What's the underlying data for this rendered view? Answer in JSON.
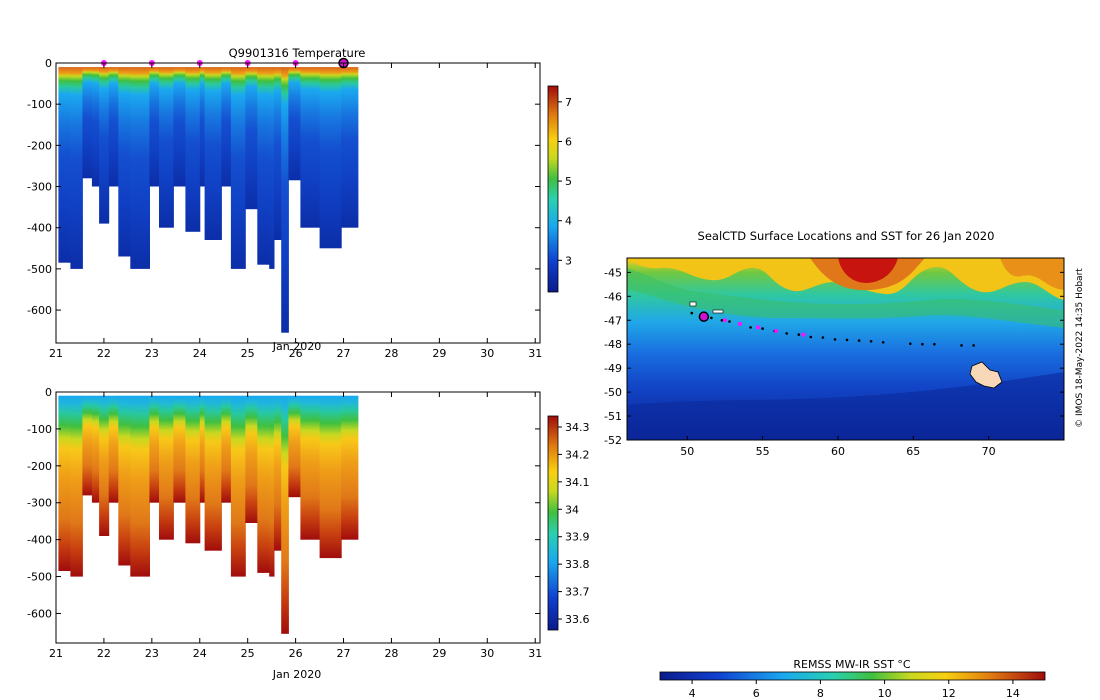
{
  "chart_data": [
    {
      "type": "heatmap",
      "title": "Q9901316  Temperature",
      "xlabel": "Jan 2020",
      "ylabel": "",
      "x_ticks": [
        "21",
        "22",
        "23",
        "24",
        "25",
        "26",
        "27",
        "28",
        "29",
        "30",
        "31"
      ],
      "xlim": [
        21,
        31.1
      ],
      "y_ticks": [
        "0",
        "-100",
        "-200",
        "-300",
        "-400",
        "-500",
        "-600"
      ],
      "ylim": [
        -680,
        0
      ],
      "surface_markers_day": [
        22,
        23,
        24,
        25,
        26
      ],
      "current_marker_day": 27,
      "colorbar": {
        "ticks": [
          "7",
          "6",
          "5",
          "4",
          "3"
        ],
        "values": [
          7,
          6,
          5,
          4,
          3
        ],
        "range": [
          2.2,
          7.4
        ]
      },
      "profiles": [
        {
          "day": 21.05,
          "max_depth": 485
        },
        {
          "day": 21.3,
          "max_depth": 500
        },
        {
          "day": 21.55,
          "max_depth": 280
        },
        {
          "day": 21.75,
          "max_depth": 300
        },
        {
          "day": 21.9,
          "max_depth": 390
        },
        {
          "day": 22.1,
          "max_depth": 300
        },
        {
          "day": 22.3,
          "max_depth": 470
        },
        {
          "day": 22.55,
          "max_depth": 500
        },
        {
          "day": 22.95,
          "max_depth": 300
        },
        {
          "day": 23.15,
          "max_depth": 400
        },
        {
          "day": 23.45,
          "max_depth": 300
        },
        {
          "day": 23.7,
          "max_depth": 410
        },
        {
          "day": 24.0,
          "max_depth": 300
        },
        {
          "day": 24.1,
          "max_depth": 430
        },
        {
          "day": 24.45,
          "max_depth": 300
        },
        {
          "day": 24.65,
          "max_depth": 500
        },
        {
          "day": 24.95,
          "max_depth": 355
        },
        {
          "day": 25.2,
          "max_depth": 490
        },
        {
          "day": 25.45,
          "max_depth": 500
        },
        {
          "day": 25.55,
          "max_depth": 430
        },
        {
          "day": 25.7,
          "max_depth": 655
        },
        {
          "day": 25.85,
          "max_depth": 285
        },
        {
          "day": 26.1,
          "max_depth": 400
        },
        {
          "day": 26.5,
          "max_depth": 450
        },
        {
          "day": 26.95,
          "max_depth": 400
        }
      ]
    },
    {
      "type": "heatmap",
      "title": "",
      "xlabel": "Jan 2020",
      "ylabel": "",
      "x_ticks": [
        "21",
        "22",
        "23",
        "24",
        "25",
        "26",
        "27",
        "28",
        "29",
        "30",
        "31"
      ],
      "xlim": [
        21,
        31.1
      ],
      "y_ticks": [
        "0",
        "-100",
        "-200",
        "-300",
        "-400",
        "-500",
        "-600"
      ],
      "ylim": [
        -680,
        0
      ],
      "colorbar": {
        "ticks": [
          "34.3",
          "34.2",
          "34.1",
          "34",
          "33.9",
          "33.8",
          "33.7",
          "33.6"
        ],
        "values": [
          34.3,
          34.2,
          34.1,
          34.0,
          33.9,
          33.8,
          33.7,
          33.6
        ],
        "range": [
          33.56,
          34.34
        ]
      },
      "profiles_same_as_temperature": true
    },
    {
      "type": "heatmap",
      "title": "SealCTD Surface Locations and SST for 26 Jan 2020",
      "x_ticks": [
        "50",
        "55",
        "60",
        "65",
        "70"
      ],
      "x_tick_values": [
        50,
        55,
        60,
        65,
        70
      ],
      "xlim": [
        46,
        75
      ],
      "y_ticks": [
        "-45",
        "-46",
        "-47",
        "-48",
        "-49",
        "-50",
        "-51",
        "-52"
      ],
      "y_tick_values": [
        -45,
        -46,
        -47,
        -48,
        -49,
        -50,
        -51,
        -52
      ],
      "ylim": [
        -52,
        -44.4
      ],
      "track_points": [
        {
          "lon": 50.3,
          "lat": -46.7
        },
        {
          "lon": 50.9,
          "lat": -46.85
        },
        {
          "lon": 51.6,
          "lat": -46.9
        },
        {
          "lon": 52.3,
          "lat": -47.0
        },
        {
          "lon": 52.8,
          "lat": -47.05
        },
        {
          "lon": 53.5,
          "lat": -47.15
        },
        {
          "lon": 54.2,
          "lat": -47.3
        },
        {
          "lon": 55.0,
          "lat": -47.35
        },
        {
          "lon": 55.8,
          "lat": -47.45
        },
        {
          "lon": 56.6,
          "lat": -47.55
        },
        {
          "lon": 57.4,
          "lat": -47.6
        },
        {
          "lon": 58.2,
          "lat": -47.7
        },
        {
          "lon": 59.0,
          "lat": -47.72
        },
        {
          "lon": 59.8,
          "lat": -47.8
        },
        {
          "lon": 60.6,
          "lat": -47.82
        },
        {
          "lon": 61.4,
          "lat": -47.85
        },
        {
          "lon": 62.2,
          "lat": -47.88
        },
        {
          "lon": 63.0,
          "lat": -47.92
        },
        {
          "lon": 64.8,
          "lat": -47.98
        },
        {
          "lon": 65.6,
          "lat": -48.0
        },
        {
          "lon": 66.4,
          "lat": -48.0
        },
        {
          "lon": 68.2,
          "lat": -48.05
        },
        {
          "lon": 69.0,
          "lat": -48.05
        }
      ],
      "surface_points": [
        {
          "lon": 52.5,
          "lat": -47.0
        },
        {
          "lon": 53.5,
          "lat": -47.15
        },
        {
          "lon": 54.7,
          "lat": -47.3
        },
        {
          "lon": 55.9,
          "lat": -47.45
        },
        {
          "lon": 57.7,
          "lat": -47.6
        }
      ],
      "current_point": {
        "lon": 51.1,
        "lat": -46.85
      },
      "credit": "© IMOS 18-May-2022 14:35 Hobart",
      "colorbar": {
        "label": "REMSS MW-IR SST °C",
        "ticks": [
          "4",
          "6",
          "8",
          "10",
          "12",
          "14"
        ],
        "values": [
          4,
          6,
          8,
          10,
          12,
          14
        ],
        "range": [
          3,
          15
        ]
      }
    }
  ]
}
